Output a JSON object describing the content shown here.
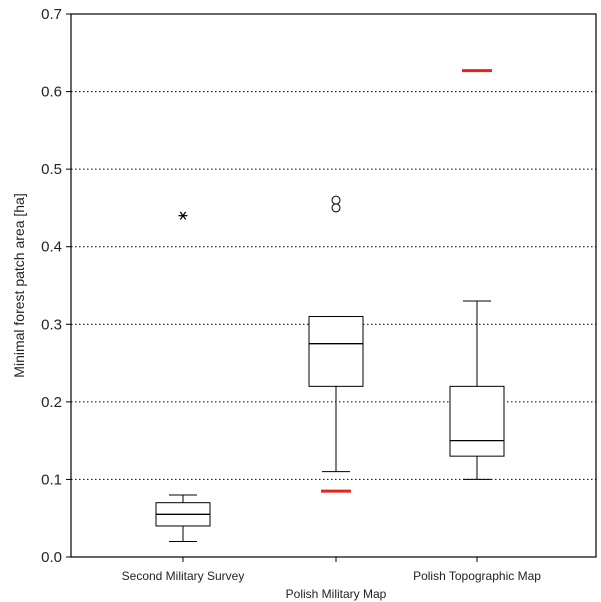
{
  "chart_data": {
    "type": "box",
    "ylabel": "Minimal forest patch area [ha]",
    "ylim": [
      0,
      0.7
    ],
    "y_ticks": [
      "0.0",
      "0.1",
      "0.2",
      "0.3",
      "0.4",
      "0.5",
      "0.6",
      "0.7"
    ],
    "grid": "horizontal dotted at major ticks",
    "categories": [
      "Second Military Survey",
      "Polish Military Map",
      "Polish Topographic Map"
    ],
    "boxes": [
      {
        "category": "Second Military Survey",
        "whisker_low": 0.02,
        "q1": 0.04,
        "median": 0.055,
        "q3": 0.07,
        "whisker_high": 0.08,
        "outliers": [],
        "extremes": [
          0.44
        ]
      },
      {
        "category": "Polish Military Map",
        "whisker_low": 0.11,
        "q1": 0.22,
        "median": 0.275,
        "q3": 0.31,
        "whisker_high": 0.31,
        "outliers": [
          0.45,
          0.46
        ],
        "extremes": []
      },
      {
        "category": "Polish Topographic Map",
        "whisker_low": 0.1,
        "q1": 0.13,
        "median": 0.15,
        "q3": 0.22,
        "whisker_high": 0.33,
        "outliers": [],
        "extremes": []
      }
    ],
    "reference_marks": [
      {
        "category": "Polish Military Map",
        "value": 0.085,
        "color": "#e0261e"
      },
      {
        "category": "Polish Topographic Map",
        "value": 0.627,
        "color": "#e0261e"
      }
    ],
    "colors": {
      "axis": "#000000",
      "box": "#000000",
      "grid": "#000000",
      "reference": "#e0261e"
    }
  }
}
